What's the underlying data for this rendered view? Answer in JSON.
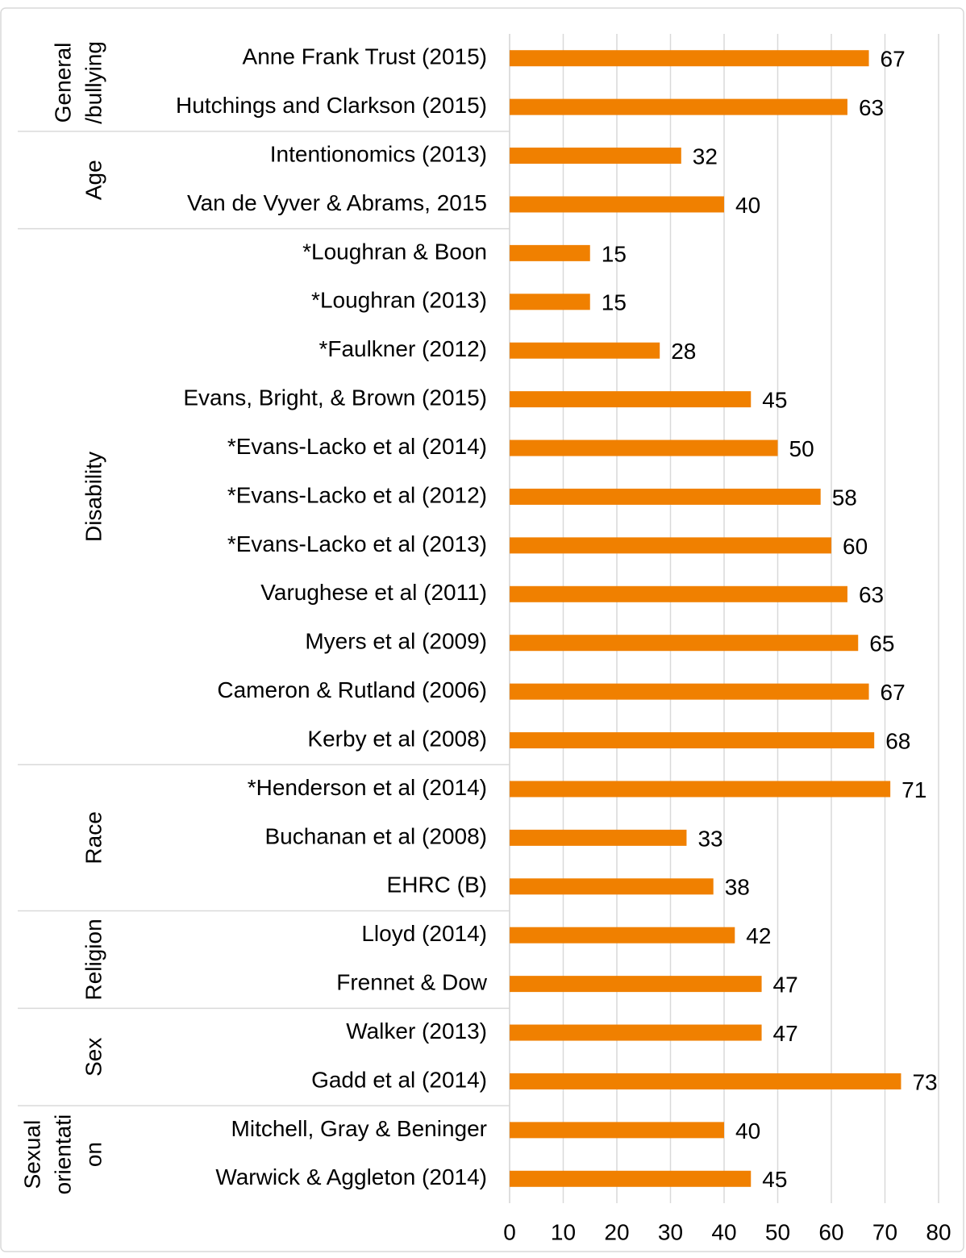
{
  "chart_data": {
    "type": "bar",
    "orientation": "horizontal",
    "color": "#f08000",
    "xlim": [
      0,
      80
    ],
    "xticks": [
      0,
      10,
      20,
      30,
      40,
      50,
      60,
      70,
      80
    ],
    "grid": true,
    "groups": [
      {
        "name": [
          "General",
          "/bullying"
        ],
        "categories": [
          "Anne Frank Trust (2015)",
          "Hutchings and Clarkson (2015)"
        ],
        "values": [
          67,
          63
        ]
      },
      {
        "name": [
          "Age"
        ],
        "categories": [
          "Intentionomics (2013)",
          "Van de Vyver & Abrams, 2015"
        ],
        "values": [
          32,
          40
        ]
      },
      {
        "name": [
          "Disability"
        ],
        "categories": [
          "*Loughran & Boon",
          "*Loughran (2013)",
          "*Faulkner (2012)",
          "Evans, Bright, & Brown (2015)",
          "*Evans-Lacko et al (2014)",
          "*Evans-Lacko et al (2012)",
          "*Evans-Lacko et al (2013)",
          "Varughese et al (2011)",
          "Myers et al (2009)",
          "Cameron & Rutland (2006)",
          "Kerby et al (2008)"
        ],
        "values": [
          15,
          15,
          28,
          45,
          50,
          58,
          60,
          63,
          65,
          67,
          68
        ]
      },
      {
        "name": [
          "Race"
        ],
        "categories": [
          "*Henderson et al (2014)",
          "Buchanan et al (2008)",
          "EHRC (B)"
        ],
        "values": [
          71,
          33,
          38
        ]
      },
      {
        "name": [
          "Religion"
        ],
        "categories": [
          "Lloyd (2014)",
          "Frennet & Dow"
        ],
        "values": [
          42,
          47
        ]
      },
      {
        "name": [
          "Sex"
        ],
        "categories": [
          "Walker (2013)",
          "Gadd et al (2014)"
        ],
        "values": [
          47,
          73
        ]
      },
      {
        "name": [
          "Sexual",
          "orientati",
          "on"
        ],
        "categories": [
          "Mitchell, Gray & Beninger",
          "Warwick & Aggleton (2014)"
        ],
        "values": [
          40,
          45
        ]
      }
    ]
  }
}
